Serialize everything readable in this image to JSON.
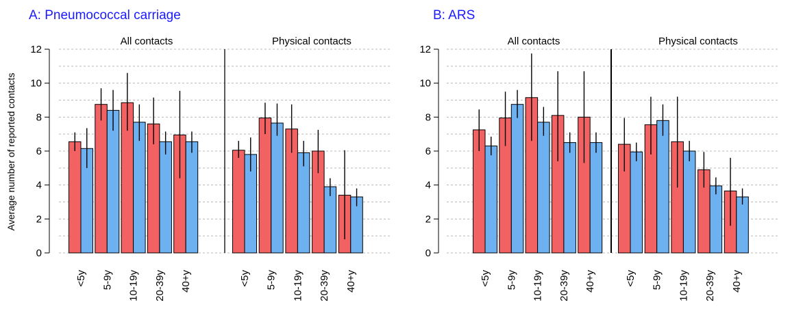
{
  "chart_data": [
    {
      "type": "bar",
      "title": "A: Pneumococcal carriage",
      "ylabel": "Average number of reported contacts",
      "ylim": [
        0,
        12
      ],
      "yticks": [
        0,
        2,
        4,
        6,
        8,
        10,
        12
      ],
      "grid": "horizontal dashed",
      "legend": "none",
      "colors": [
        "#f36262",
        "#6eb1f0"
      ],
      "panels": [
        {
          "label": "All contacts",
          "categories": [
            "<5y",
            "5-9y",
            "10-19y",
            "20-39y",
            "40+y"
          ],
          "series": [
            {
              "values": [
                6.55,
                8.75,
                8.85,
                7.6,
                6.95
              ],
              "err_low": [
                6.0,
                7.8,
                7.2,
                6.4,
                4.4
              ],
              "err_high": [
                7.1,
                9.7,
                10.6,
                9.15,
                9.55
              ]
            },
            {
              "values": [
                6.15,
                8.4,
                7.7,
                6.55,
                6.55
              ],
              "err_low": [
                5.0,
                7.2,
                6.6,
                5.8,
                5.9
              ],
              "err_high": [
                7.35,
                9.6,
                8.75,
                7.15,
                7.15
              ]
            }
          ]
        },
        {
          "label": "Physical contacts",
          "categories": [
            "<5y",
            "5-9y",
            "10-19y",
            "20-39y",
            "40+y"
          ],
          "series": [
            {
              "values": [
                6.05,
                7.95,
                7.3,
                6.0,
                3.4
              ],
              "err_low": [
                5.6,
                7.0,
                5.9,
                4.7,
                0.8
              ],
              "err_high": [
                6.6,
                8.85,
                8.75,
                7.25,
                6.05
              ]
            },
            {
              "values": [
                5.8,
                7.65,
                5.9,
                3.9,
                3.3
              ],
              "err_low": [
                4.8,
                6.9,
                5.1,
                3.35,
                2.75
              ],
              "err_high": [
                6.8,
                8.8,
                6.6,
                4.4,
                3.8
              ]
            }
          ]
        }
      ]
    },
    {
      "type": "bar",
      "title": "B: ARS",
      "ylabel": "",
      "ylim": [
        0,
        12
      ],
      "yticks": [
        0,
        2,
        4,
        6,
        8,
        10,
        12
      ],
      "grid": "horizontal dashed",
      "legend": "none",
      "colors": [
        "#f36262",
        "#6eb1f0"
      ],
      "panels": [
        {
          "label": "All contacts",
          "categories": [
            "<5y",
            "5-9y",
            "10-19y",
            "20-39y",
            "40+y"
          ],
          "series": [
            {
              "values": [
                7.25,
                7.95,
                9.15,
                8.1,
                8.0
              ],
              "err_low": [
                6.0,
                6.3,
                6.6,
                5.4,
                5.3
              ],
              "err_high": [
                8.45,
                9.5,
                11.75,
                10.7,
                10.7
              ]
            },
            {
              "values": [
                6.3,
                8.75,
                7.7,
                6.5,
                6.5
              ],
              "err_low": [
                5.75,
                7.95,
                6.9,
                5.9,
                5.9
              ],
              "err_high": [
                6.85,
                9.6,
                8.6,
                7.1,
                7.1
              ]
            }
          ]
        },
        {
          "label": "Physical contacts",
          "categories": [
            "<5y",
            "5-9y",
            "10-19y",
            "20-39y",
            "40+y"
          ],
          "series": [
            {
              "values": [
                6.4,
                7.55,
                6.55,
                4.9,
                3.65
              ],
              "err_low": [
                4.8,
                5.8,
                3.85,
                3.85,
                1.6
              ],
              "err_high": [
                7.95,
                9.2,
                9.2,
                5.95,
                5.6
              ]
            },
            {
              "values": [
                5.95,
                7.8,
                6.0,
                3.95,
                3.3
              ],
              "err_low": [
                5.4,
                6.9,
                5.4,
                3.45,
                2.85
              ],
              "err_high": [
                6.5,
                8.75,
                6.6,
                4.45,
                3.8
              ]
            }
          ]
        }
      ]
    }
  ]
}
